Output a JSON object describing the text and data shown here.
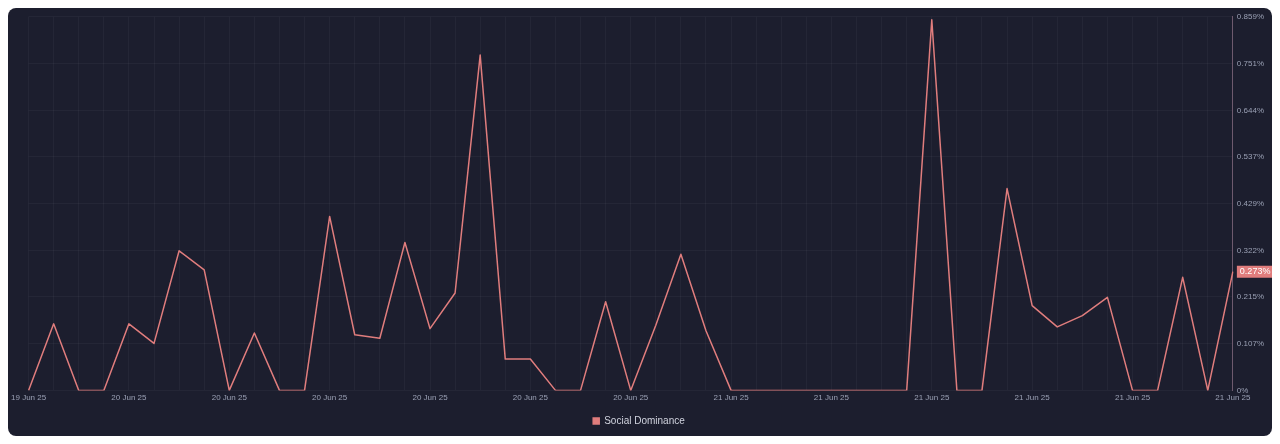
{
  "chart_data": {
    "type": "line",
    "categories": [
      "19 Jun 25",
      null,
      null,
      null,
      "20 Jun 25",
      null,
      null,
      null,
      "20 Jun 25",
      null,
      null,
      null,
      "20 Jun 25",
      null,
      null,
      null,
      "20 Jun 25",
      null,
      null,
      null,
      "20 Jun 25",
      null,
      null,
      null,
      "20 Jun 25",
      null,
      null,
      null,
      "21 Jun 25",
      null,
      null,
      null,
      "21 Jun 25",
      null,
      null,
      null,
      "21 Jun 25",
      null,
      null,
      null,
      "21 Jun 25",
      null,
      null,
      null,
      "21 Jun 25",
      null,
      null,
      null,
      "21 Jun 25"
    ],
    "series": [
      {
        "name": "Social Dominance",
        "color": "#e07d7d",
        "values": [
          0,
          0.153,
          0,
          0,
          0.153,
          0.108,
          0.321,
          0.277,
          0,
          0.132,
          0,
          0,
          0.4,
          0.128,
          0.12,
          0.34,
          0.142,
          0.224,
          0.771,
          0.072,
          0.072,
          0,
          0,
          0.204,
          0,
          0.15,
          0.313,
          0.137,
          0,
          0,
          0,
          0,
          0,
          0,
          0,
          0,
          0.852,
          0,
          0,
          0.464,
          0.195,
          0.146,
          0.172,
          0.214,
          0,
          0,
          0.26,
          0,
          0.273
        ]
      }
    ],
    "ylim": [
      0,
      0.859
    ],
    "yticks": [
      {
        "value": 0,
        "label": "0%"
      },
      {
        "value": 0.107,
        "label": "0.107%"
      },
      {
        "value": 0.215,
        "label": "0.215%"
      },
      {
        "value": 0.322,
        "label": "0.322%"
      },
      {
        "value": 0.429,
        "label": "0.429%"
      },
      {
        "value": 0.537,
        "label": "0.537%"
      },
      {
        "value": 0.644,
        "label": "0.644%"
      },
      {
        "value": 0.751,
        "label": "0.751%"
      },
      {
        "value": 0.859,
        "label": "0.859%"
      }
    ],
    "annotations": [
      "0.273%"
    ],
    "grid": true,
    "legend": "bottom",
    "marker": "none",
    "line_style": "solid"
  }
}
